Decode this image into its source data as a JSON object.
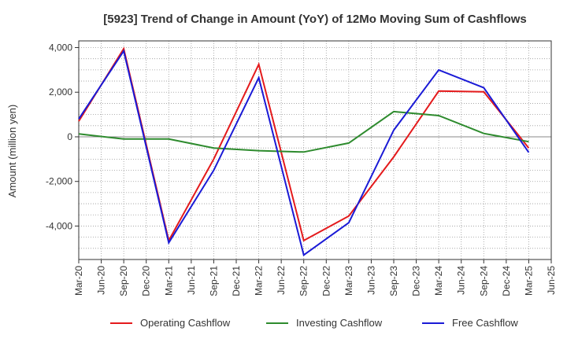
{
  "chart_data": {
    "type": "line",
    "title": "[5923]  Trend of Change in Amount (YoY) of 12Mo Moving Sum of Cashflows",
    "xlabel": "",
    "ylabel": "Amount (million yen)",
    "ylim": [
      -5500,
      4300
    ],
    "yticks": [
      4000,
      2000,
      0,
      -2000,
      -4000
    ],
    "ytick_labels": [
      "4,000",
      "2,000",
      "0",
      "-2,000",
      "-4,000"
    ],
    "categories": [
      "Mar-20",
      "Jun-20",
      "Sep-20",
      "Dec-20",
      "Mar-21",
      "Jun-21",
      "Sep-21",
      "Dec-21",
      "Mar-22",
      "Jun-22",
      "Sep-22",
      "Dec-22",
      "Mar-23",
      "Jun-23",
      "Sep-23",
      "Dec-23",
      "Mar-24",
      "Jun-24",
      "Sep-24",
      "Dec-24",
      "Mar-25",
      "Jun-25"
    ],
    "grid": true,
    "legend_position": "bottom",
    "series": [
      {
        "name": "Operating Cashflow",
        "color": "#e41a1c",
        "points": [
          [
            0,
            700
          ],
          [
            2,
            3950
          ],
          [
            4,
            -4650
          ],
          [
            6,
            -1000
          ],
          [
            8,
            3250
          ],
          [
            10,
            -4650
          ],
          [
            12,
            -3550
          ],
          [
            14,
            -900
          ],
          [
            16,
            2050
          ],
          [
            18,
            2020
          ],
          [
            20,
            -500
          ]
        ]
      },
      {
        "name": "Investing Cashflow",
        "color": "#2e8b2e",
        "points": [
          [
            0,
            130
          ],
          [
            2,
            -100
          ],
          [
            4,
            -100
          ],
          [
            6,
            -500
          ],
          [
            8,
            -620
          ],
          [
            10,
            -680
          ],
          [
            12,
            -280
          ],
          [
            14,
            1130
          ],
          [
            16,
            950
          ],
          [
            18,
            150
          ],
          [
            20,
            -220
          ]
        ]
      },
      {
        "name": "Free Cashflow",
        "color": "#1a1ad6",
        "points": [
          [
            0,
            800
          ],
          [
            2,
            3850
          ],
          [
            4,
            -4750
          ],
          [
            6,
            -1500
          ],
          [
            8,
            2650
          ],
          [
            10,
            -5300
          ],
          [
            12,
            -3850
          ],
          [
            14,
            300
          ],
          [
            16,
            3000
          ],
          [
            18,
            2200
          ],
          [
            20,
            -700
          ]
        ]
      }
    ]
  }
}
